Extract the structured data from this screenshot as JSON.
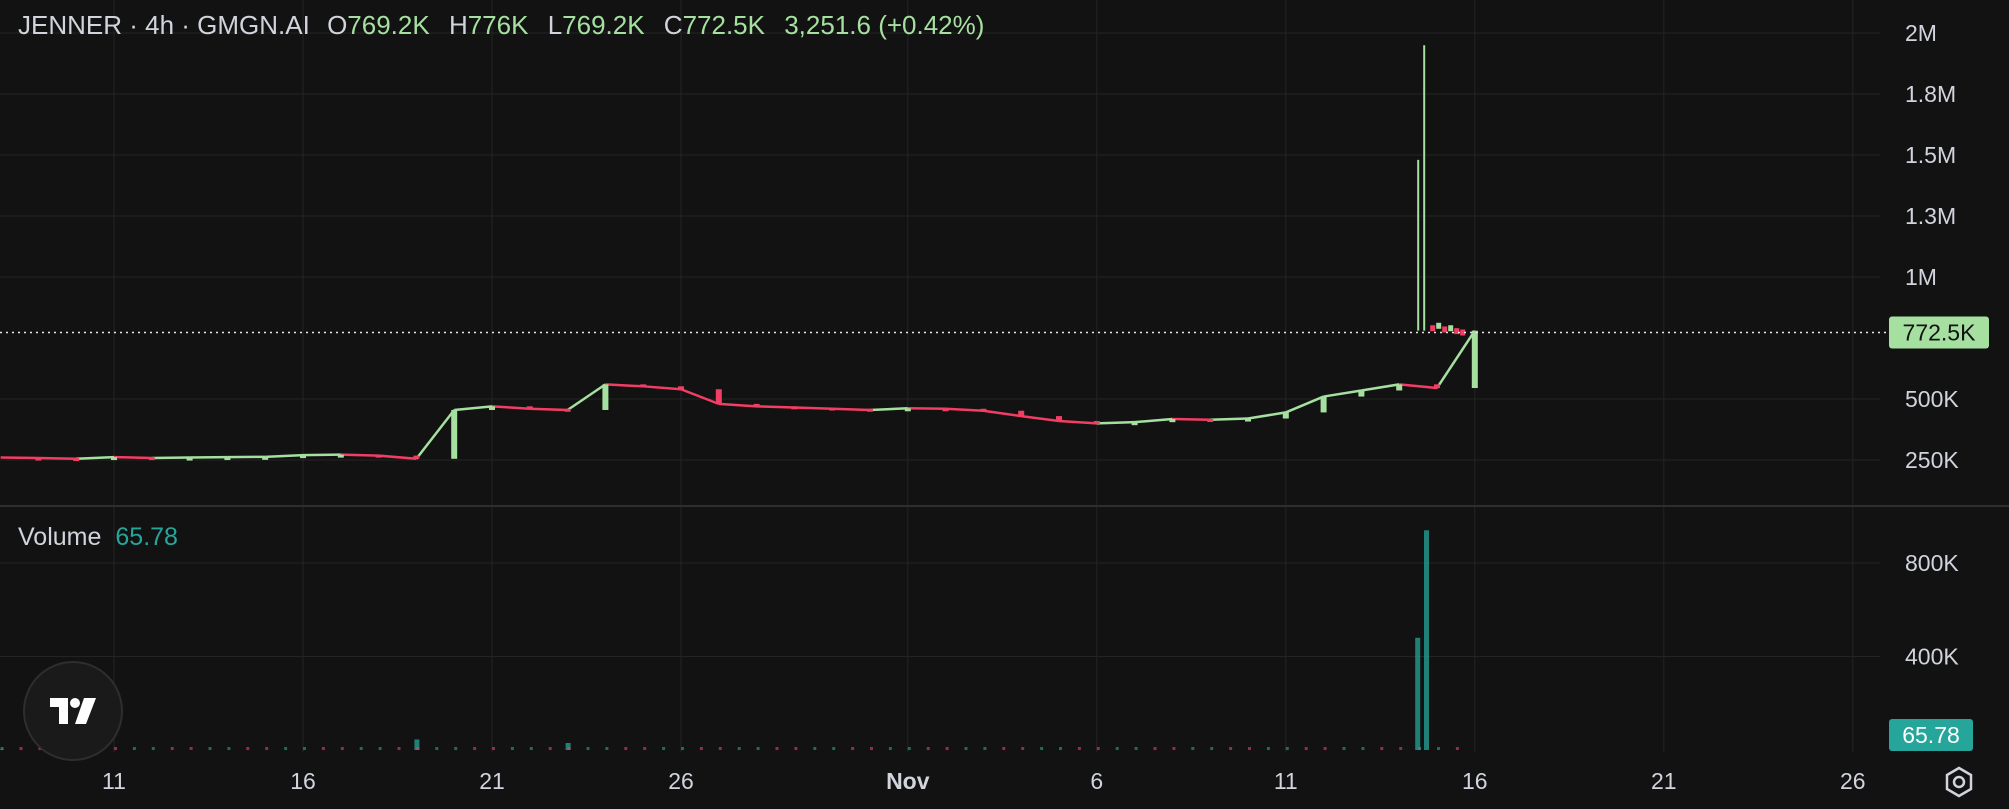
{
  "header": {
    "symbol": "JENNER",
    "interval": "4h",
    "exchange": "GMGN.AI",
    "open_label": "O",
    "open": "769.2K",
    "high_label": "H",
    "high": "776K",
    "low_label": "L",
    "low": "769.2K",
    "close_label": "C",
    "close": "772.5K",
    "change": "3,251.6 (+0.42%)"
  },
  "volume_header": {
    "label": "Volume",
    "value": "65.78"
  },
  "price_tag": "772.5K",
  "volume_tag": "65.78",
  "colors": {
    "background": "#121212",
    "up": "#a5e0a0",
    "down": "#f23d64",
    "volume": "#26a69a",
    "grid": "#242424",
    "text": "#d1d4dc"
  },
  "icons": {
    "logo": "tradingview-logo-icon",
    "settings": "settings-hexagon-icon"
  },
  "chart_data": [
    {
      "type": "line",
      "title": "",
      "price_axis_labels": [
        "2M",
        "1.8M",
        "1.5M",
        "1.3M",
        "1M",
        "500K",
        "250K"
      ],
      "price_axis_values": [
        2000000,
        1750000,
        1500000,
        1250000,
        1000000,
        500000,
        250000
      ],
      "time_axis_labels": [
        "11",
        "16",
        "21",
        "26",
        "Nov",
        "6",
        "11",
        "16",
        "21",
        "26"
      ],
      "time_axis_dates": [
        "2024-10-11",
        "2024-10-16",
        "2024-10-21",
        "2024-10-26",
        "2024-11-01",
        "2024-11-06",
        "2024-11-11",
        "2024-11-16",
        "2024-11-21",
        "2024-11-26"
      ],
      "ylim": [
        0,
        2100000
      ],
      "grid": true,
      "last_price": 772500,
      "series": [
        {
          "x": [
            "2024-10-08",
            "2024-10-09",
            "2024-10-10",
            "2024-10-11",
            "2024-10-12",
            "2024-10-13",
            "2024-10-14",
            "2024-10-15",
            "2024-10-16",
            "2024-10-17",
            "2024-10-18",
            "2024-10-19",
            "2024-10-20",
            "2024-10-21",
            "2024-10-22",
            "2024-10-23",
            "2024-10-24",
            "2024-10-25",
            "2024-10-26",
            "2024-10-27",
            "2024-10-28",
            "2024-10-29",
            "2024-10-30",
            "2024-10-31",
            "2024-11-01",
            "2024-11-02",
            "2024-11-03",
            "2024-11-04",
            "2024-11-05",
            "2024-11-06",
            "2024-11-07",
            "2024-11-08",
            "2024-11-09",
            "2024-11-10",
            "2024-11-11",
            "2024-11-12",
            "2024-11-13",
            "2024-11-14",
            "2024-11-15",
            "2024-11-16"
          ],
          "y": [
            260000,
            258000,
            255000,
            262000,
            258000,
            260000,
            262000,
            263000,
            270000,
            272000,
            268000,
            255000,
            455000,
            470000,
            460000,
            455000,
            560000,
            552000,
            540000,
            480000,
            470000,
            465000,
            460000,
            455000,
            462000,
            460000,
            452000,
            430000,
            410000,
            400000,
            405000,
            418000,
            415000,
            420000,
            445000,
            510000,
            535000,
            560000,
            545000,
            780000
          ]
        }
      ]
    },
    {
      "type": "bar",
      "title": "Volume",
      "volume_axis_labels": [
        "800K",
        "400K"
      ],
      "volume_axis_values": [
        800000,
        400000
      ],
      "ylim": [
        0,
        1000000
      ],
      "last_volume": 65.78,
      "x": [
        "2024-10-08",
        "2024-10-19",
        "2024-10-23",
        "2024-11-14",
        "2024-11-15"
      ],
      "values": [
        3000,
        45000,
        30000,
        480000,
        940000
      ]
    }
  ]
}
